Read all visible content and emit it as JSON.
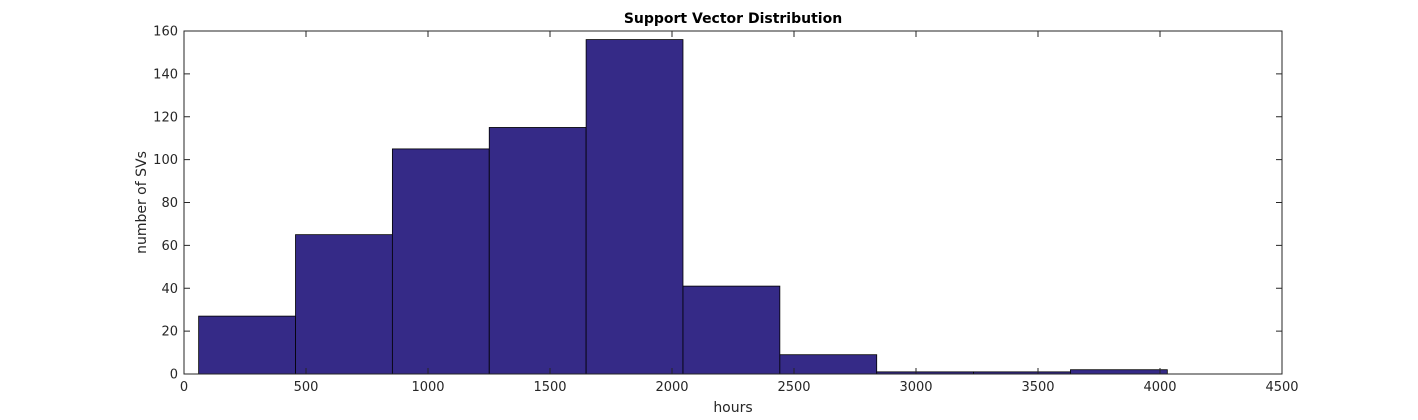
{
  "chart_data": {
    "type": "bar",
    "title": "Support Vector Distribution",
    "xlabel": "hours",
    "ylabel": "number of SVs",
    "xlim": [
      0,
      4500
    ],
    "ylim": [
      0,
      160
    ],
    "xticks": [
      0,
      500,
      1000,
      1500,
      2000,
      2500,
      3000,
      3500,
      4000,
      4500
    ],
    "yticks": [
      0,
      20,
      40,
      60,
      80,
      100,
      120,
      140,
      160
    ],
    "bins": [
      {
        "x0": 60,
        "x1": 457,
        "value": 27
      },
      {
        "x0": 457,
        "x1": 854,
        "value": 65
      },
      {
        "x0": 854,
        "x1": 1251,
        "value": 105
      },
      {
        "x0": 1251,
        "x1": 1648,
        "value": 115
      },
      {
        "x0": 1648,
        "x1": 2045,
        "value": 156
      },
      {
        "x0": 2045,
        "x1": 2442,
        "value": 41
      },
      {
        "x0": 2442,
        "x1": 2839,
        "value": 9
      },
      {
        "x0": 2839,
        "x1": 3236,
        "value": 1
      },
      {
        "x0": 3236,
        "x1": 3633,
        "value": 1
      },
      {
        "x0": 3633,
        "x1": 4030,
        "value": 2
      }
    ],
    "bar_color": "#352a87",
    "edge_color": "#000000",
    "grid": false,
    "box": true
  }
}
